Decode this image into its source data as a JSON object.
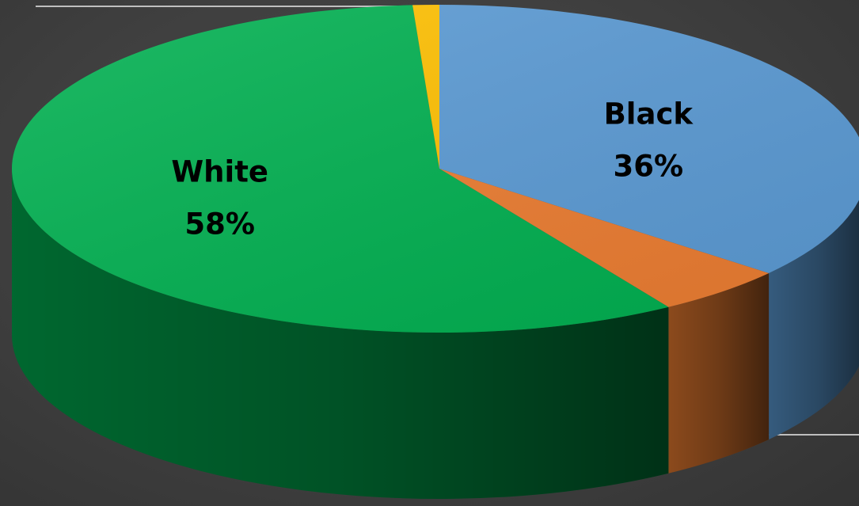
{
  "chart_data": {
    "type": "pie",
    "style": "3d",
    "slices": [
      {
        "name": "Black",
        "value": 36,
        "percent_label": "36%",
        "color": "#5b9bd5",
        "show_label": true
      },
      {
        "name": "",
        "value": 5,
        "percent_label": "",
        "color": "#ed7d31",
        "show_label": false
      },
      {
        "name": "White",
        "value": 58,
        "percent_label": "58%",
        "color": "#00b050",
        "show_label": true
      },
      {
        "name": "",
        "value": 1,
        "percent_label": "",
        "color": "#ffc000",
        "show_label": false
      }
    ]
  }
}
